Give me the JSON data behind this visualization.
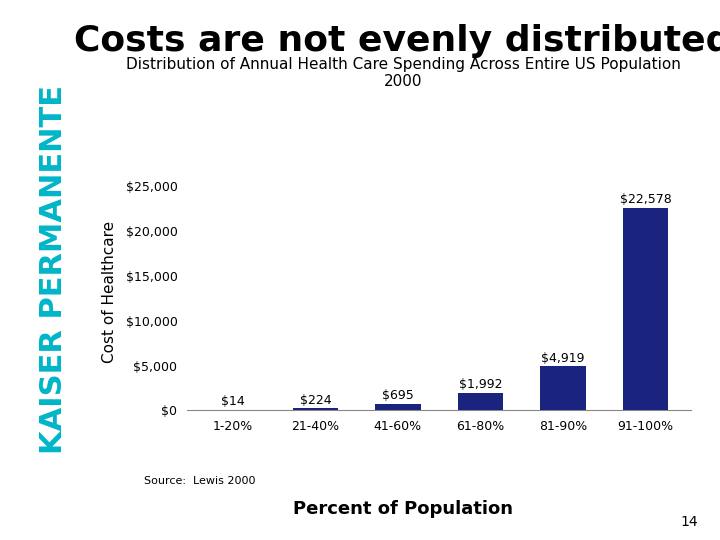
{
  "title_main": "Costs are not evenly distributed",
  "subtitle": "Distribution of Annual Health Care Spending Across Entire US Population\n2000",
  "categories": [
    "1-20%",
    "21-40%",
    "41-60%",
    "61-80%",
    "81-90%",
    "91-100%"
  ],
  "values": [
    14,
    224,
    695,
    1992,
    4919,
    22578
  ],
  "labels": [
    "$14",
    "$224",
    "$695",
    "$1,992",
    "$4,919",
    "$22,578"
  ],
  "bar_color": "#1a237e",
  "kaiser_text": "KAISER PERMANENTE",
  "kaiser_color": "#00b5c8",
  "ylabel": "Cost of Healthcare",
  "xlabel": "Percent of Population",
  "source": "Source:  Lewis 2000",
  "page_num": "14",
  "yticks": [
    0,
    5000,
    10000,
    15000,
    20000,
    25000
  ],
  "ytick_labels": [
    "$0",
    "$5,000",
    "$10,000",
    "$15,000",
    "$20,000",
    "$25,000"
  ],
  "ylim": [
    0,
    26500
  ],
  "bg_color": "#ffffff",
  "title_fontsize": 26,
  "subtitle_fontsize": 11,
  "axis_ylabel_fontsize": 11,
  "xlabel_fontsize": 13,
  "bar_label_fontsize": 9,
  "tick_label_fontsize": 9,
  "kaiser_fontsize": 22,
  "source_fontsize": 8,
  "pagenum_fontsize": 10
}
